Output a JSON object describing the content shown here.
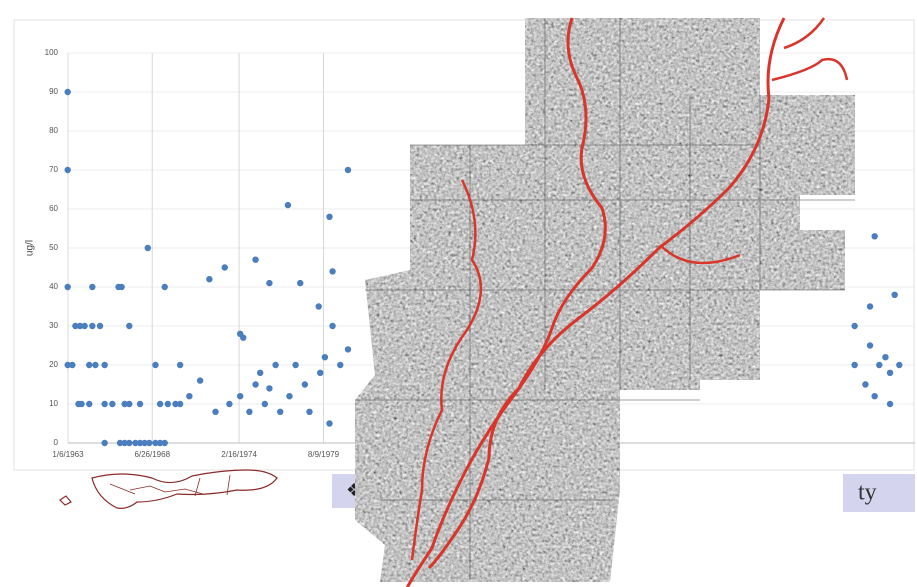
{
  "chart_data": {
    "type": "scatter",
    "y_label": "ug/l",
    "color": "#4a7ebf",
    "grid": true,
    "xlim": [
      1963.02,
      2018.02
    ],
    "xticks": [
      {
        "value": 1963.02,
        "label": "1/6/1963"
      },
      {
        "value": 1968.49,
        "label": "6/26/1968"
      },
      {
        "value": 1974.13,
        "label": "2/16/1974"
      },
      {
        "value": 1979.61,
        "label": "8/9/1979"
      }
    ],
    "ylim": [
      0,
      100
    ],
    "yticks": [
      0,
      10,
      20,
      30,
      40,
      50,
      60,
      70,
      80,
      90,
      100
    ],
    "x": [
      1963.0,
      1963.0,
      1963.0,
      1963.0,
      1963.3,
      1963.5,
      1963.8,
      1964.1,
      1964.6,
      1965.1,
      1964.6,
      1966.3,
      1966.5,
      1969.3,
      1964.4,
      1964.8,
      1965.4,
      1963.7,
      1963.9,
      1964.4,
      1965.4,
      1965.9,
      1966.7,
      1967.0,
      1967.7,
      1969.0,
      1969.5,
      1970.0,
      1965.4,
      1966.4,
      1966.7,
      1967.0,
      1967.4,
      1967.7,
      1968.0,
      1968.3,
      1968.7,
      1969.0,
      1969.3,
      1968.2,
      1967.0,
      1968.7,
      1970.3,
      1970.3,
      1970.9,
      1971.6,
      1972.2,
      1972.6,
      1973.2,
      1973.5,
      1974.2,
      1974.4,
      1974.2,
      1974.8,
      1975.2,
      1975.2,
      1975.5,
      1975.8,
      1976.1,
      1976.1,
      1976.5,
      1976.8,
      1977.3,
      1977.4,
      1977.8,
      1978.1,
      1978.4,
      1978.7,
      1979.3,
      1979.4,
      1979.7,
      1980.0,
      1980.0,
      1980.2,
      1980.2,
      1980.7,
      1981.2,
      1981.2,
      2014.1,
      2014.1,
      2014.8,
      2015.1,
      2015.4,
      2015.4,
      2015.7,
      2016.1,
      2016.4,
      2016.7,
      2017.0,
      2016.4,
      2015.1
    ],
    "values": [
      90,
      70,
      40,
      20,
      20,
      30,
      30,
      30,
      30,
      30,
      40,
      40,
      40,
      40,
      20,
      20,
      20,
      10,
      10,
      10,
      10,
      10,
      10,
      10,
      10,
      10,
      10,
      10,
      0,
      0,
      0,
      0,
      0,
      0,
      0,
      0,
      0,
      0,
      0,
      50,
      30,
      20,
      20,
      10,
      12,
      16,
      42,
      8,
      45,
      10,
      28,
      27,
      12,
      8,
      47,
      15,
      18,
      10,
      41,
      14,
      20,
      8,
      61,
      12,
      20,
      41,
      15,
      8,
      35,
      18,
      22,
      58,
      5,
      44,
      30,
      20,
      70,
      24,
      30,
      20,
      15,
      25,
      53,
      12,
      20,
      22,
      18,
      38,
      20,
      10,
      35
    ]
  },
  "fragments": {
    "symbol": "❖",
    "suffix": "ty"
  }
}
